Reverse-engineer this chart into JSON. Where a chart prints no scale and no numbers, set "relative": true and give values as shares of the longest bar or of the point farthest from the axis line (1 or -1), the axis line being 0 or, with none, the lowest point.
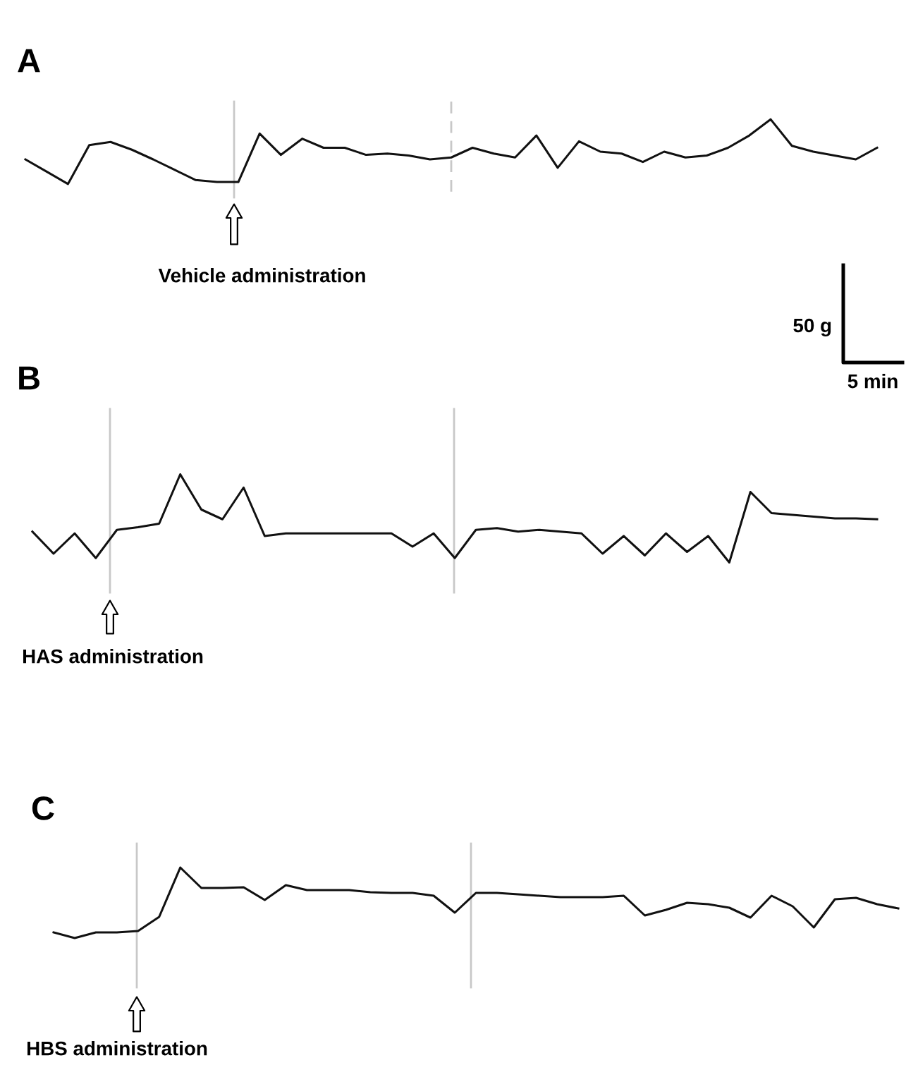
{
  "chart_data": [
    {
      "type": "line",
      "title": "A",
      "relative": true,
      "color": "#111111",
      "categories": [
        null,
        null,
        null,
        null,
        null,
        null,
        null,
        null,
        null,
        null,
        null,
        null,
        null,
        null,
        null,
        null,
        null,
        null,
        null,
        null,
        null,
        null,
        null,
        null,
        null,
        null,
        null,
        null,
        null,
        null,
        null,
        null,
        null,
        null,
        null,
        null,
        null,
        null,
        null,
        null,
        null
      ],
      "values": [
        0.38,
        0.19,
        0,
        0.6,
        0.65,
        0.53,
        0.38,
        0.22,
        0.06,
        0.03,
        0.03,
        0.78,
        0.45,
        0.7,
        0.56,
        0.56,
        0.45,
        0.47,
        0.44,
        0.38,
        0.41,
        0.56,
        0.47,
        0.41,
        0.75,
        0.25,
        0.66,
        0.5,
        0.47,
        0.34,
        0.5,
        0.41,
        0.44,
        0.56,
        0.75,
        1.0,
        0.59,
        0.5,
        0.44,
        0.38,
        0.56
      ],
      "annotations": [
        "Vehicle administration",
        "50 g",
        "5 min"
      ]
    },
    {
      "type": "line",
      "title": "B",
      "relative": true,
      "color": "#111111",
      "categories": [
        null,
        null,
        null,
        null,
        null,
        null,
        null,
        null,
        null,
        null,
        null,
        null,
        null,
        null,
        null,
        null,
        null,
        null,
        null,
        null,
        null,
        null,
        null,
        null,
        null,
        null,
        null,
        null,
        null,
        null,
        null,
        null,
        null,
        null,
        null,
        null,
        null,
        null,
        null,
        null,
        null
      ],
      "values": [
        0.35,
        0.1,
        0.33,
        0.05,
        0.37,
        0.4,
        0.44,
        1.0,
        0.6,
        0.49,
        0.85,
        0.3,
        0.33,
        0.33,
        0.33,
        0.33,
        0.33,
        0.33,
        0.18,
        0.33,
        0.05,
        0.37,
        0.39,
        0.35,
        0.37,
        0.35,
        0.33,
        0.1,
        0.3,
        0.08,
        0.33,
        0.12,
        0.3,
        0,
        0.8,
        0.56,
        0.54,
        0.52,
        0.5,
        0.5,
        0.49
      ],
      "annotations": [
        "HAS administration"
      ]
    },
    {
      "type": "line",
      "title": "C",
      "relative": true,
      "color": "#111111",
      "categories": [
        null,
        null,
        null,
        null,
        null,
        null,
        null,
        null,
        null,
        null,
        null,
        null,
        null,
        null,
        null,
        null,
        null,
        null,
        null,
        null,
        null,
        null,
        null,
        null,
        null,
        null,
        null,
        null,
        null,
        null,
        null,
        null,
        null,
        null,
        null,
        null,
        null,
        null,
        null,
        null,
        null
      ],
      "values": [
        0.08,
        0,
        0.08,
        0.08,
        0.1,
        0.3,
        1.0,
        0.71,
        0.71,
        0.72,
        0.54,
        0.75,
        0.68,
        0.68,
        0.68,
        0.65,
        0.64,
        0.64,
        0.6,
        0.36,
        0.64,
        0.64,
        0.62,
        0.6,
        0.58,
        0.58,
        0.58,
        0.6,
        0.32,
        0.4,
        0.5,
        0.48,
        0.43,
        0.29,
        0.6,
        0.45,
        0.15,
        0.55,
        0.57,
        0.48,
        0.42
      ],
      "annotations": [
        "HBS administration"
      ]
    }
  ]
}
